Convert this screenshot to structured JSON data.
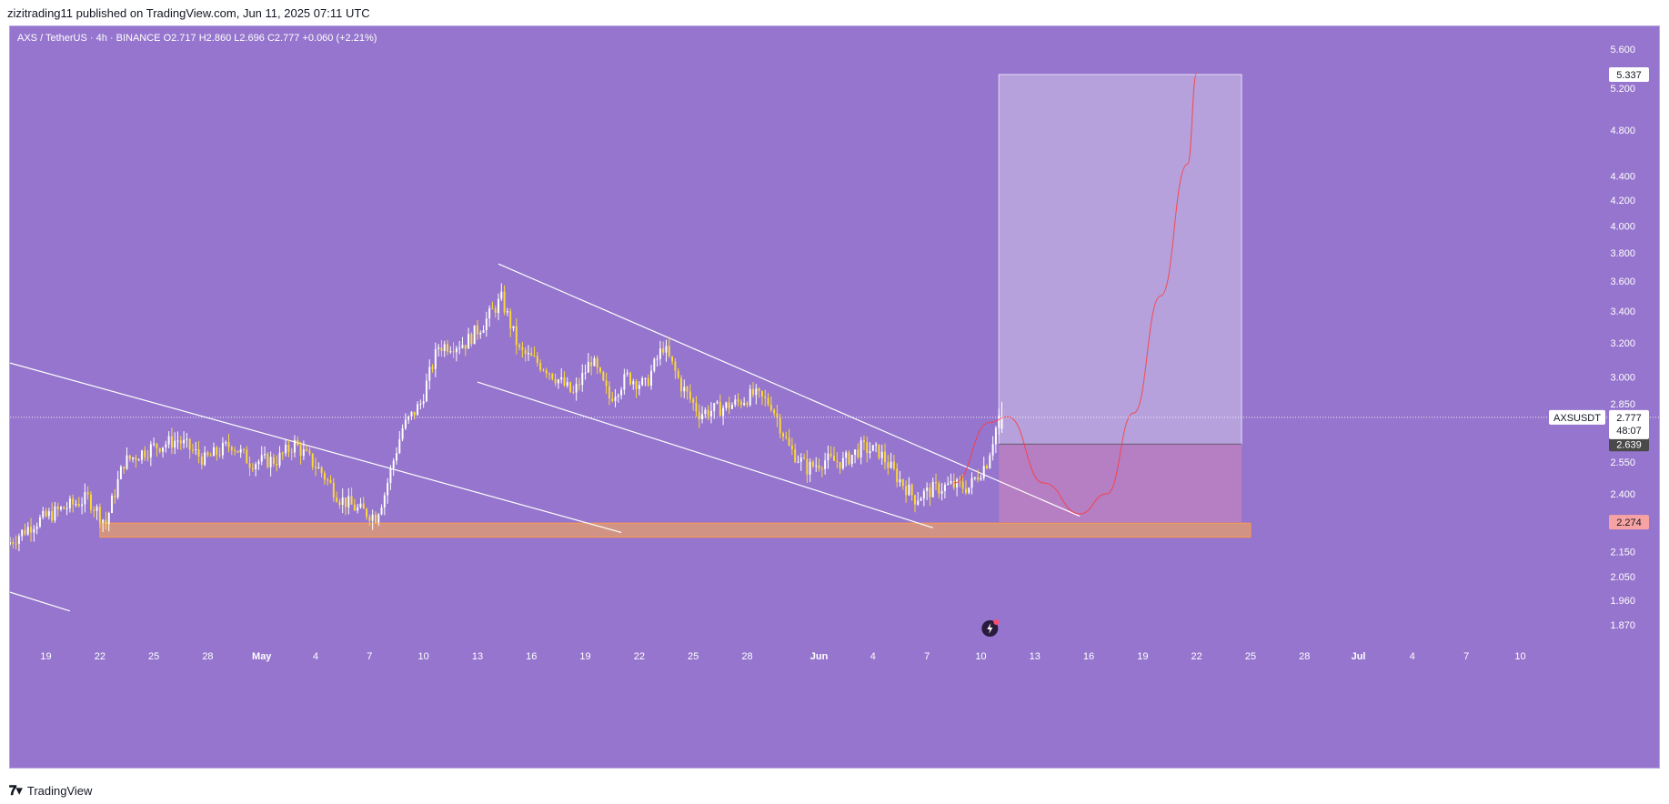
{
  "header": {
    "published_text": "zizitrading11 published on TradingView.com, Jun 11, 2025 07:11 UTC"
  },
  "footer": {
    "brand_name": "TradingView",
    "brand_icon": "tradingview-logo-icon"
  },
  "colors": {
    "background": "#9575cd",
    "candle_up": "#ffffff",
    "candle_down": "#fdd835",
    "trendline": "#ffffff",
    "support_zone": "#e59d6b",
    "target_zone": "#d1c4e9",
    "stop_zone": "#f48fb1",
    "projection_curve": "#ff3b3b",
    "price_label_current": "#ffffff",
    "price_label_entry": "#4a4a4a",
    "price_label_stop": "#f7a3a3"
  },
  "chart_data": {
    "type": "candlestick",
    "symbol_line": {
      "pair": "AXS / TetherUS",
      "interval": "4h",
      "exchange": "BINANCE",
      "open_label": "O2.717",
      "high_label": "H2.860",
      "low_label": "L2.696",
      "close_label": "C2.777",
      "change_label": "+0.060 (+2.21%)"
    },
    "open": 2.717,
    "high": 2.86,
    "low": 2.696,
    "close": 2.777,
    "change": 0.06,
    "change_pct": 2.21,
    "y_scale": "log",
    "y_range": [
      1.8,
      5.85
    ],
    "y_ticks": [
      5.6,
      5.2,
      4.8,
      4.4,
      4.2,
      4.0,
      3.8,
      3.6,
      3.4,
      3.2,
      3.0,
      2.85,
      2.55,
      2.4,
      2.15,
      2.05,
      1.96,
      1.87
    ],
    "x_ticks": [
      {
        "label": "19",
        "date": "2025-04-19"
      },
      {
        "label": "22",
        "date": "2025-04-22"
      },
      {
        "label": "25",
        "date": "2025-04-25"
      },
      {
        "label": "28",
        "date": "2025-04-28"
      },
      {
        "label": "May",
        "date": "2025-05-01"
      },
      {
        "label": "4",
        "date": "2025-05-04"
      },
      {
        "label": "7",
        "date": "2025-05-07"
      },
      {
        "label": "10",
        "date": "2025-05-10"
      },
      {
        "label": "13",
        "date": "2025-05-13"
      },
      {
        "label": "16",
        "date": "2025-05-16"
      },
      {
        "label": "19",
        "date": "2025-05-19"
      },
      {
        "label": "22",
        "date": "2025-05-22"
      },
      {
        "label": "25",
        "date": "2025-05-25"
      },
      {
        "label": "28",
        "date": "2025-05-28"
      },
      {
        "label": "Jun",
        "date": "2025-06-01"
      },
      {
        "label": "4",
        "date": "2025-06-04"
      },
      {
        "label": "7",
        "date": "2025-06-07"
      },
      {
        "label": "10",
        "date": "2025-06-10"
      },
      {
        "label": "13",
        "date": "2025-06-13"
      },
      {
        "label": "16",
        "date": "2025-06-16"
      },
      {
        "label": "19",
        "date": "2025-06-19"
      },
      {
        "label": "22",
        "date": "2025-06-22"
      },
      {
        "label": "25",
        "date": "2025-06-25"
      },
      {
        "label": "28",
        "date": "2025-06-28"
      },
      {
        "label": "Jul",
        "date": "2025-07-01"
      },
      {
        "label": "4",
        "date": "2025-07-04"
      },
      {
        "label": "7",
        "date": "2025-07-07"
      },
      {
        "label": "10",
        "date": "2025-07-10"
      }
    ],
    "x_range": [
      "2025-04-17",
      "2025-07-12"
    ],
    "price_path": [
      {
        "date": "2025-04-17T00:00",
        "price": 2.18
      },
      {
        "date": "2025-04-18T12:00",
        "price": 2.27
      },
      {
        "date": "2025-04-20T00:00",
        "price": 2.33
      },
      {
        "date": "2025-04-21T12:00",
        "price": 2.38
      },
      {
        "date": "2025-04-22T12:00",
        "price": 2.27
      },
      {
        "date": "2025-04-23T12:00",
        "price": 2.55
      },
      {
        "date": "2025-04-25T00:00",
        "price": 2.62
      },
      {
        "date": "2025-04-26T12:00",
        "price": 2.66
      },
      {
        "date": "2025-04-28T00:00",
        "price": 2.56
      },
      {
        "date": "2025-04-29T12:00",
        "price": 2.64
      },
      {
        "date": "2025-04-30T12:00",
        "price": 2.55
      },
      {
        "date": "2025-05-02T00:00",
        "price": 2.56
      },
      {
        "date": "2025-05-03T00:00",
        "price": 2.64
      },
      {
        "date": "2025-05-04T12:00",
        "price": 2.5
      },
      {
        "date": "2025-05-05T12:00",
        "price": 2.38
      },
      {
        "date": "2025-05-06T12:00",
        "price": 2.33
      },
      {
        "date": "2025-05-07T12:00",
        "price": 2.3
      },
      {
        "date": "2025-05-08T00:00",
        "price": 2.4
      },
      {
        "date": "2025-05-09T00:00",
        "price": 2.72
      },
      {
        "date": "2025-05-10T00:00",
        "price": 2.85
      },
      {
        "date": "2025-05-11T00:00",
        "price": 3.18
      },
      {
        "date": "2025-05-12T12:00",
        "price": 3.2
      },
      {
        "date": "2025-05-13T12:00",
        "price": 3.32
      },
      {
        "date": "2025-05-14T12:00",
        "price": 3.48
      },
      {
        "date": "2025-05-15T12:00",
        "price": 3.15
      },
      {
        "date": "2025-05-17T00:00",
        "price": 3.05
      },
      {
        "date": "2025-05-18T12:00",
        "price": 2.9
      },
      {
        "date": "2025-05-19T12:00",
        "price": 3.1
      },
      {
        "date": "2025-05-20T12:00",
        "price": 2.88
      },
      {
        "date": "2025-05-21T12:00",
        "price": 3.0
      },
      {
        "date": "2025-05-22T12:00",
        "price": 2.95
      },
      {
        "date": "2025-05-23T12:00",
        "price": 3.18
      },
      {
        "date": "2025-05-24T12:00",
        "price": 2.95
      },
      {
        "date": "2025-05-25T12:00",
        "price": 2.8
      },
      {
        "date": "2025-05-26T12:00",
        "price": 2.82
      },
      {
        "date": "2025-05-27T12:00",
        "price": 2.85
      },
      {
        "date": "2025-05-28T12:00",
        "price": 2.9
      },
      {
        "date": "2025-05-29T12:00",
        "price": 2.85
      },
      {
        "date": "2025-05-30T12:00",
        "price": 2.62
      },
      {
        "date": "2025-05-31T12:00",
        "price": 2.52
      },
      {
        "date": "2025-06-01T12:00",
        "price": 2.56
      },
      {
        "date": "2025-06-02T12:00",
        "price": 2.55
      },
      {
        "date": "2025-06-03T12:00",
        "price": 2.62
      },
      {
        "date": "2025-06-04T12:00",
        "price": 2.6
      },
      {
        "date": "2025-06-05T12:00",
        "price": 2.48
      },
      {
        "date": "2025-06-06T12:00",
        "price": 2.38
      },
      {
        "date": "2025-06-07T12:00",
        "price": 2.42
      },
      {
        "date": "2025-06-08T12:00",
        "price": 2.44
      },
      {
        "date": "2025-06-09T12:00",
        "price": 2.43
      },
      {
        "date": "2025-06-10T12:00",
        "price": 2.55
      },
      {
        "date": "2025-06-11T04:00",
        "price": 2.777
      }
    ],
    "trendlines": [
      {
        "name": "upper-descending-trendline",
        "from": {
          "date": "2025-05-14T04:00",
          "price": 3.72
        },
        "to": {
          "date": "2025-06-15T12:00",
          "price": 2.3
        }
      },
      {
        "name": "lower-channel-trendline",
        "from": {
          "date": "2025-05-13T00:00",
          "price": 2.97
        },
        "to": {
          "date": "2025-06-07T08:00",
          "price": 2.25
        }
      },
      {
        "name": "long-descending-trendline",
        "from": {
          "date": "2025-04-17T00:00",
          "price": 3.08
        },
        "to": {
          "date": "2025-05-21T00:00",
          "price": 2.23
        }
      },
      {
        "name": "lower-left-trendline",
        "from": {
          "date": "2025-04-17T00:00",
          "price": 1.99
        },
        "to": {
          "date": "2025-04-20T08:00",
          "price": 1.92
        }
      }
    ],
    "support_zone": {
      "from": "2025-04-22T00:00",
      "to": "2025-06-25T00:00",
      "price_low": 2.21,
      "price_high": 2.27
    },
    "position": {
      "from": "2025-06-11T00:00",
      "to": "2025-06-24T12:00",
      "target": 5.337,
      "entry": 2.639,
      "stop": 2.274
    },
    "projection_curve": [
      {
        "date": "2025-06-08T12:00",
        "price": 2.45
      },
      {
        "date": "2025-06-10T12:00",
        "price": 2.75
      },
      {
        "date": "2025-06-11T12:00",
        "price": 2.78
      },
      {
        "date": "2025-06-13T12:00",
        "price": 2.45
      },
      {
        "date": "2025-06-15T12:00",
        "price": 2.31
      },
      {
        "date": "2025-06-17T00:00",
        "price": 2.4
      },
      {
        "date": "2025-06-18T12:00",
        "price": 2.8
      },
      {
        "date": "2025-06-20T00:00",
        "price": 3.5
      },
      {
        "date": "2025-06-21T12:00",
        "price": 4.5
      },
      {
        "date": "2025-06-22T00:00",
        "price": 5.35
      }
    ],
    "price_labels": {
      "target": "5.337",
      "current_symbol": "AXSUSDT",
      "current": "2.777",
      "countdown": "48:07",
      "entry": "2.639",
      "stop": "2.274"
    },
    "event_marker_icon": "lightning-event-icon"
  }
}
